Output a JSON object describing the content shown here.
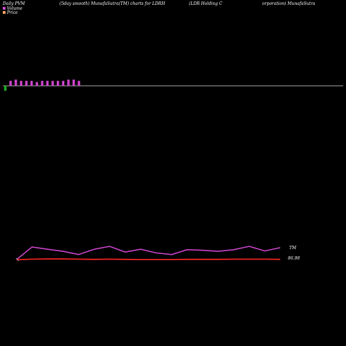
{
  "header": {
    "left": "Daily PVM",
    "mid": "(5day smooth) MunafaSutra(TM) charts for LDRH",
    "right_a": "(LDR Holding C",
    "right_b": "orporation) MunafaSutra"
  },
  "legend": {
    "items": [
      {
        "label": "Volume",
        "color": "#cc44cc"
      },
      {
        "label": "Price",
        "color": "#f4a460"
      }
    ]
  },
  "colors": {
    "background": "#000000",
    "volume_up": "#cc44cc",
    "volume_down": "#22aa22",
    "price_line": "#ee2222",
    "tm_line": "#cc44cc",
    "baseline": "#aaaaaa"
  },
  "chart_data": [
    {
      "type": "bar",
      "title": "",
      "series": [
        {
          "values": [
            4,
            4,
            5,
            4,
            4,
            4,
            3,
            4,
            4,
            4,
            4,
            4,
            5,
            5,
            4
          ],
          "down": [
            true,
            false,
            false,
            false,
            false,
            false,
            false,
            false,
            false,
            false,
            false,
            false,
            false,
            false,
            false
          ]
        }
      ],
      "grid": false
    },
    {
      "type": "line",
      "series": [
        {
          "name": "TM",
          "values": [
            0.0,
            0.95,
            0.78,
            0.62,
            0.38,
            0.78,
            1.0,
            0.57,
            0.78,
            0.5,
            0.38,
            0.75,
            0.7,
            0.62,
            0.75,
            1.0,
            0.65,
            0.9
          ]
        },
        {
          "name": "Price",
          "values": [
            0.02,
            0.05,
            0.06,
            0.06,
            0.05,
            0.04,
            0.05,
            0.04,
            0.03,
            0.03,
            0.03,
            0.04,
            0.04,
            0.04,
            0.05,
            0.05,
            0.05,
            0.04
          ]
        }
      ],
      "labels": {
        "tm": "TM",
        "price": "86.98"
      },
      "grid": false
    }
  ]
}
